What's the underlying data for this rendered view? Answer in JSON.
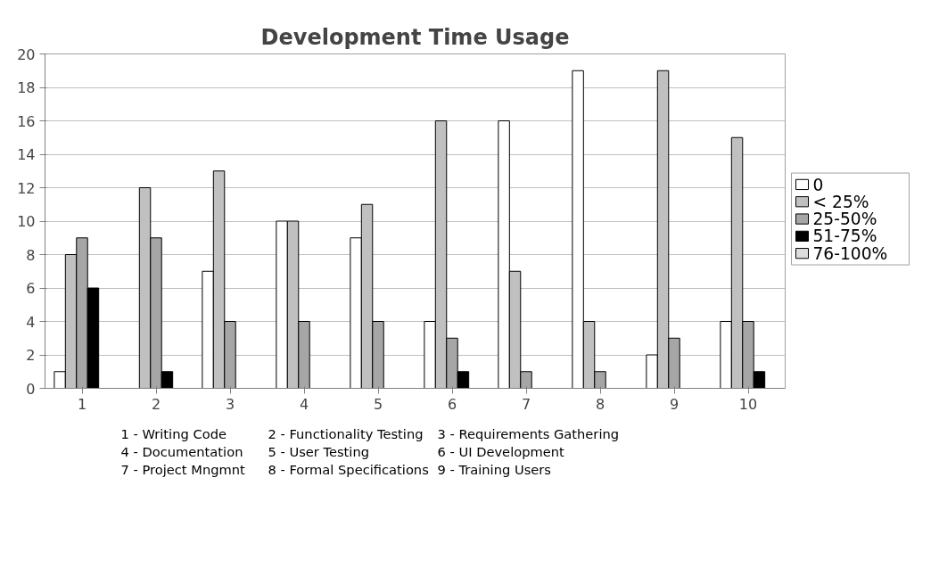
{
  "chart_data": {
    "type": "bar",
    "title": "Development Time Usage",
    "categories": [
      "1",
      "2",
      "3",
      "4",
      "5",
      "6",
      "7",
      "8",
      "9",
      "10"
    ],
    "series": [
      {
        "name": "0",
        "color": "#ffffff",
        "values": [
          1,
          0,
          7,
          10,
          9,
          4,
          16,
          19,
          2,
          4
        ]
      },
      {
        "name": "< 25%",
        "color": "#c0c0c0",
        "values": [
          8,
          12,
          13,
          10,
          11,
          16,
          7,
          4,
          19,
          15
        ]
      },
      {
        "name": "25-50%",
        "color": "#a6a6a6",
        "values": [
          9,
          9,
          4,
          4,
          4,
          3,
          1,
          1,
          3,
          4
        ]
      },
      {
        "name": "51-75%",
        "color": "#000000",
        "values": [
          6,
          1,
          0,
          0,
          0,
          1,
          0,
          0,
          0,
          1
        ]
      },
      {
        "name": "76-100%",
        "color": "#dddddd",
        "values": [
          0,
          0,
          0,
          0,
          0,
          0,
          0,
          0,
          0,
          0
        ]
      }
    ],
    "ylim": [
      0,
      20
    ],
    "yticks": [
      0,
      2,
      4,
      6,
      8,
      10,
      12,
      14,
      16,
      18,
      20
    ],
    "grid": "y",
    "legend": "right",
    "annotations": [
      "1 - Writing Code",
      "2 - Functionality Testing",
      "3 - Requirements Gathering",
      "4 - Documentation",
      "5 - User Testing",
      "6 - UI Development",
      "7 - Project Mngmnt",
      "8 - Formal Specifications",
      "9 - Training Users"
    ]
  }
}
